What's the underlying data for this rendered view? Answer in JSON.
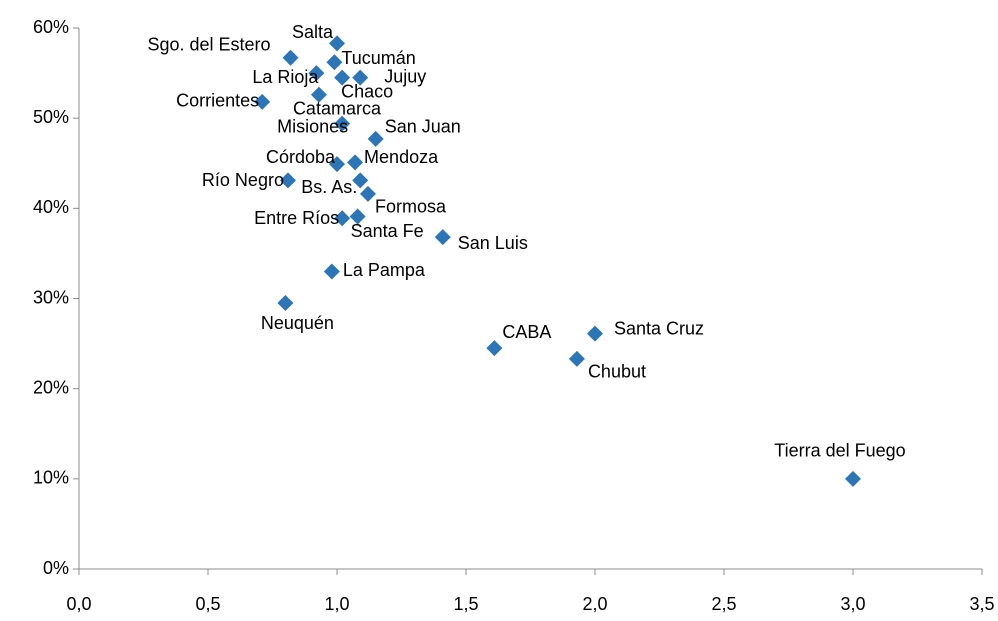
{
  "chart_data": {
    "type": "scatter",
    "labels": [
      "Salta",
      "Sgo. del Estero",
      "Tucumán",
      "La Rioja",
      "Jujuy",
      "Chaco",
      "Corrientes",
      "Catamarca",
      "Misiones",
      "San Juan",
      "Córdoba",
      "Mendoza",
      "Río Negro",
      "Bs. As.",
      "Formosa",
      "Entre Ríos",
      "Santa Fe",
      "San Luis",
      "La Pampa",
      "Neuquén",
      "CABA",
      "Santa Cruz",
      "Chubut",
      "Tierra del Fuego"
    ],
    "x": [
      1.0,
      0.82,
      0.99,
      0.92,
      1.09,
      1.02,
      0.71,
      0.93,
      1.02,
      1.15,
      1.0,
      1.07,
      0.81,
      1.09,
      1.12,
      1.02,
      1.08,
      1.41,
      0.98,
      0.8,
      1.61,
      2.0,
      1.93,
      3.0
    ],
    "values": [
      58.3,
      56.7,
      56.2,
      55.0,
      54.5,
      54.5,
      51.8,
      52.6,
      49.4,
      47.7,
      44.9,
      45.1,
      43.1,
      43.1,
      41.6,
      38.9,
      39.1,
      36.8,
      33.0,
      29.5,
      24.5,
      26.1,
      23.3,
      10.0
    ],
    "color": "#2e75b6",
    "xlim": [
      0,
      3.5
    ],
    "xticks": [
      {
        "value": 0,
        "label": "0,0"
      },
      {
        "value": 0.5,
        "label": "0,5"
      },
      {
        "value": 1,
        "label": "1,0"
      },
      {
        "value": 1.5,
        "label": "1,5"
      },
      {
        "value": 2,
        "label": "2,0"
      },
      {
        "value": 2.5,
        "label": "2,5"
      },
      {
        "value": 3,
        "label": "3,0"
      },
      {
        "value": 3.5,
        "label": "3,5"
      }
    ],
    "ylim": [
      0,
      60
    ],
    "yticks": [
      {
        "value": 0,
        "label": "0%"
      },
      {
        "value": 10,
        "label": "10%"
      },
      {
        "value": 20,
        "label": "20%"
      },
      {
        "value": 30,
        "label": "30%"
      },
      {
        "value": 40,
        "label": "40%"
      },
      {
        "value": 50,
        "label": "50%"
      },
      {
        "value": 60,
        "label": "60%"
      }
    ],
    "grid": false
  }
}
